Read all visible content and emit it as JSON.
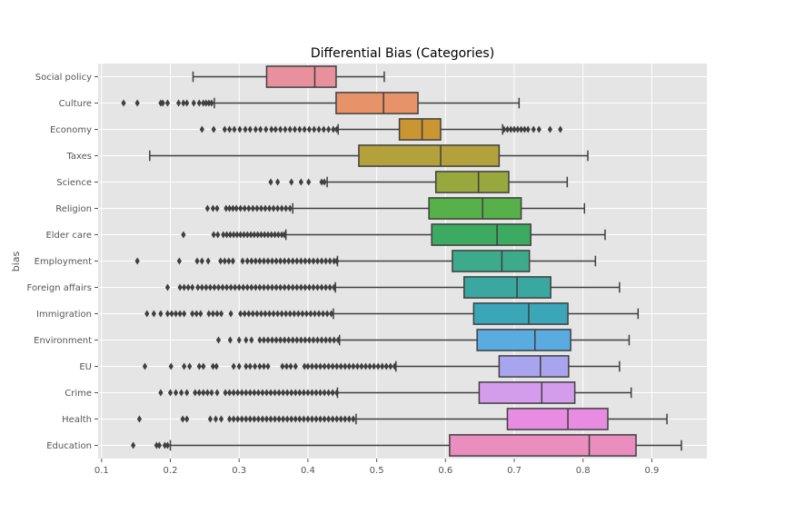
{
  "chart_data": {
    "type": "boxplot",
    "title": "Differential Bias (Categories)",
    "xlabel": "",
    "ylabel": "bias",
    "xlim": [
      0.095,
      0.98
    ],
    "xticks": [
      0.1,
      0.2,
      0.3,
      0.4,
      0.5,
      0.6,
      0.7,
      0.8,
      0.9
    ],
    "grid": true,
    "legend": "none",
    "categories": [
      "Social policy",
      "Culture",
      "Economy",
      "Taxes",
      "Science",
      "Religion",
      "Elder care",
      "Employment",
      "Foreign affairs",
      "Immigration",
      "Environment",
      "EU",
      "Crime",
      "Health",
      "Education"
    ],
    "boxes": [
      {
        "category": "Social policy",
        "whisker_low": 0.233,
        "q1": 0.34,
        "median": 0.41,
        "q3": 0.441,
        "whisker_high": 0.511,
        "color": "#e8909b",
        "outliers": []
      },
      {
        "category": "Culture",
        "whisker_low": 0.264,
        "q1": 0.441,
        "median": 0.51,
        "q3": 0.56,
        "whisker_high": 0.707,
        "color": "#e8926a",
        "outliers": [
          0.132,
          0.152,
          0.186,
          0.189,
          0.196,
          0.212,
          0.219,
          0.224,
          0.234,
          0.242,
          0.248,
          0.252,
          0.256,
          0.26
        ]
      },
      {
        "category": "Economy",
        "whisker_low": 0.444,
        "q1": 0.533,
        "median": 0.566,
        "q3": 0.593,
        "whisker_high": 0.683,
        "color": "#c99632",
        "outliers": [
          0.246,
          0.263,
          0.279,
          0.286,
          0.293,
          0.301,
          0.309,
          0.316,
          0.324,
          0.331,
          0.339,
          0.347,
          0.353,
          0.36,
          0.367,
          0.374,
          0.381,
          0.388,
          0.395,
          0.402,
          0.409,
          0.416,
          0.423,
          0.43,
          0.437,
          0.442,
          0.685,
          0.69,
          0.695,
          0.7,
          0.705,
          0.71,
          0.715,
          0.72,
          0.728,
          0.736,
          0.752,
          0.767
        ]
      },
      {
        "category": "Taxes",
        "whisker_low": 0.17,
        "q1": 0.474,
        "median": 0.593,
        "q3": 0.678,
        "whisker_high": 0.807,
        "color": "#b3a13c",
        "outliers": []
      },
      {
        "category": "Science",
        "whisker_low": 0.428,
        "q1": 0.586,
        "median": 0.648,
        "q3": 0.692,
        "whisker_high": 0.777,
        "color": "#98a83d",
        "outliers": [
          0.346,
          0.356,
          0.376,
          0.39,
          0.401,
          0.42,
          0.424
        ]
      },
      {
        "category": "Religion",
        "whisker_low": 0.378,
        "q1": 0.576,
        "median": 0.654,
        "q3": 0.71,
        "whisker_high": 0.802,
        "color": "#58b04a",
        "outliers": [
          0.254,
          0.262,
          0.268,
          0.281,
          0.286,
          0.291,
          0.296,
          0.302,
          0.308,
          0.314,
          0.32,
          0.326,
          0.332,
          0.338,
          0.344,
          0.35,
          0.356,
          0.362,
          0.368,
          0.374
        ]
      },
      {
        "category": "Elder care",
        "whisker_low": 0.368,
        "q1": 0.58,
        "median": 0.675,
        "q3": 0.724,
        "whisker_high": 0.832,
        "color": "#3daa62",
        "outliers": [
          0.219,
          0.263,
          0.269,
          0.277,
          0.282,
          0.287,
          0.292,
          0.297,
          0.302,
          0.307,
          0.312,
          0.317,
          0.322,
          0.327,
          0.332,
          0.337,
          0.342,
          0.347,
          0.352,
          0.357,
          0.362,
          0.366
        ]
      },
      {
        "category": "Employment",
        "whisker_low": 0.443,
        "q1": 0.61,
        "median": 0.682,
        "q3": 0.722,
        "whisker_high": 0.818,
        "color": "#3daa8c",
        "outliers": [
          0.152,
          0.213,
          0.239,
          0.246,
          0.255,
          0.273,
          0.279,
          0.285,
          0.291,
          0.305,
          0.312,
          0.318,
          0.324,
          0.33,
          0.336,
          0.342,
          0.348,
          0.354,
          0.36,
          0.366,
          0.372,
          0.378,
          0.384,
          0.39,
          0.396,
          0.402,
          0.408,
          0.414,
          0.42,
          0.426,
          0.432,
          0.438,
          0.442
        ]
      },
      {
        "category": "Foreign affairs",
        "whisker_low": 0.44,
        "q1": 0.627,
        "median": 0.704,
        "q3": 0.753,
        "whisker_high": 0.853,
        "color": "#3aa8a0",
        "outliers": [
          0.196,
          0.214,
          0.22,
          0.226,
          0.232,
          0.24,
          0.246,
          0.252,
          0.258,
          0.264,
          0.27,
          0.276,
          0.282,
          0.288,
          0.294,
          0.3,
          0.306,
          0.312,
          0.318,
          0.324,
          0.33,
          0.336,
          0.342,
          0.348,
          0.354,
          0.36,
          0.366,
          0.372,
          0.378,
          0.384,
          0.39,
          0.396,
          0.402,
          0.408,
          0.414,
          0.42,
          0.426,
          0.432,
          0.438
        ]
      },
      {
        "category": "Immigration",
        "whisker_low": 0.437,
        "q1": 0.641,
        "median": 0.721,
        "q3": 0.778,
        "whisker_high": 0.88,
        "color": "#3aa6b8",
        "outliers": [
          0.166,
          0.176,
          0.186,
          0.196,
          0.202,
          0.208,
          0.214,
          0.22,
          0.232,
          0.238,
          0.244,
          0.256,
          0.262,
          0.268,
          0.274,
          0.288,
          0.302,
          0.308,
          0.314,
          0.32,
          0.326,
          0.332,
          0.338,
          0.344,
          0.35,
          0.356,
          0.362,
          0.368,
          0.374,
          0.38,
          0.386,
          0.392,
          0.398,
          0.404,
          0.41,
          0.416,
          0.422,
          0.428,
          0.434
        ]
      },
      {
        "category": "Environment",
        "whisker_low": 0.446,
        "q1": 0.646,
        "median": 0.73,
        "q3": 0.782,
        "whisker_high": 0.867,
        "color": "#5aabe0",
        "outliers": [
          0.27,
          0.287,
          0.3,
          0.31,
          0.318,
          0.33,
          0.336,
          0.342,
          0.348,
          0.354,
          0.36,
          0.366,
          0.372,
          0.378,
          0.384,
          0.39,
          0.396,
          0.402,
          0.408,
          0.414,
          0.42,
          0.426,
          0.432,
          0.438,
          0.444
        ]
      },
      {
        "category": "EU",
        "whisker_low": 0.528,
        "q1": 0.678,
        "median": 0.738,
        "q3": 0.779,
        "whisker_high": 0.853,
        "color": "#a8a4ee",
        "outliers": [
          0.163,
          0.201,
          0.22,
          0.228,
          0.242,
          0.248,
          0.262,
          0.267,
          0.292,
          0.3,
          0.31,
          0.316,
          0.323,
          0.33,
          0.336,
          0.342,
          0.363,
          0.369,
          0.375,
          0.382,
          0.395,
          0.4,
          0.406,
          0.412,
          0.418,
          0.424,
          0.43,
          0.436,
          0.442,
          0.448,
          0.454,
          0.46,
          0.466,
          0.472,
          0.478,
          0.484,
          0.49,
          0.496,
          0.502,
          0.508,
          0.514,
          0.52,
          0.526
        ]
      },
      {
        "category": "Crime",
        "whisker_low": 0.443,
        "q1": 0.649,
        "median": 0.74,
        "q3": 0.788,
        "whisker_high": 0.87,
        "color": "#d59cee",
        "outliers": [
          0.186,
          0.2,
          0.208,
          0.216,
          0.224,
          0.236,
          0.242,
          0.248,
          0.254,
          0.26,
          0.268,
          0.28,
          0.286,
          0.292,
          0.298,
          0.304,
          0.31,
          0.316,
          0.322,
          0.328,
          0.334,
          0.34,
          0.346,
          0.352,
          0.358,
          0.364,
          0.37,
          0.376,
          0.382,
          0.388,
          0.394,
          0.4,
          0.406,
          0.412,
          0.418,
          0.424,
          0.43,
          0.436,
          0.442
        ]
      },
      {
        "category": "Health",
        "whisker_low": 0.47,
        "q1": 0.69,
        "median": 0.778,
        "q3": 0.836,
        "whisker_high": 0.922,
        "color": "#e88ce2",
        "outliers": [
          0.155,
          0.218,
          0.224,
          0.258,
          0.266,
          0.274,
          0.286,
          0.292,
          0.298,
          0.304,
          0.31,
          0.316,
          0.322,
          0.328,
          0.334,
          0.34,
          0.346,
          0.352,
          0.358,
          0.364,
          0.37,
          0.376,
          0.382,
          0.388,
          0.394,
          0.4,
          0.406,
          0.412,
          0.418,
          0.424,
          0.43,
          0.436,
          0.442,
          0.448,
          0.454,
          0.46,
          0.466
        ]
      },
      {
        "category": "Education",
        "whisker_low": 0.2,
        "q1": 0.606,
        "median": 0.809,
        "q3": 0.877,
        "whisker_high": 0.943,
        "color": "#ea8ec0",
        "outliers": [
          0.146,
          0.18,
          0.184,
          0.192,
          0.196
        ]
      }
    ]
  }
}
